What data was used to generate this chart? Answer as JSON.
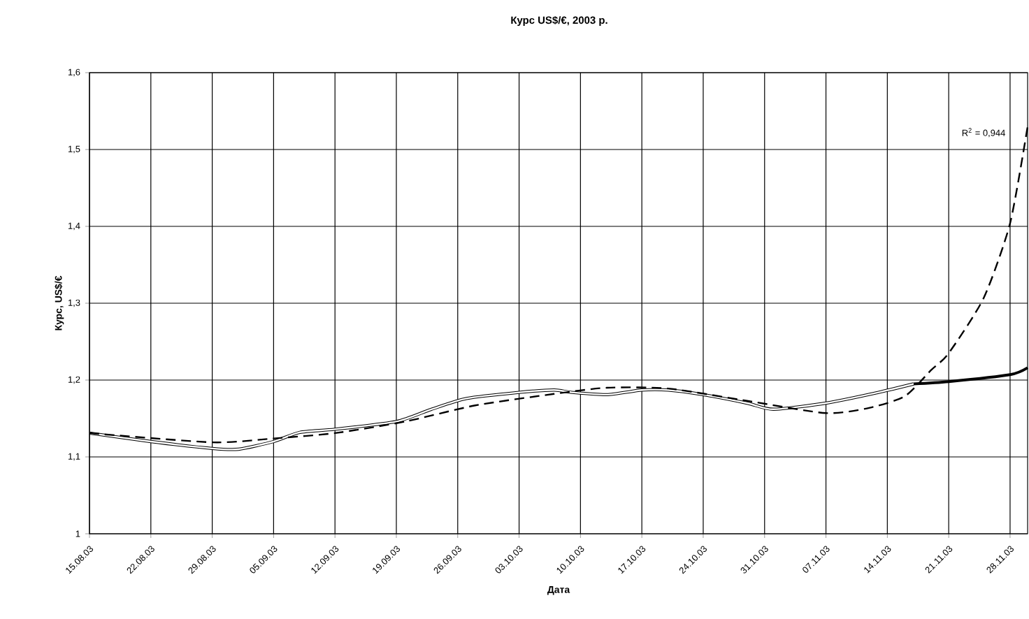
{
  "chart_data": {
    "type": "line",
    "title": "Курс US$/€, 2003 р.",
    "xlabel": "Дата",
    "ylabel": "Курс, US$/€",
    "annotations": [
      "R$^{2}$ = 0,944"
    ],
    "xlim": [
      "2003-08-15",
      "2003-11-30"
    ],
    "xticks": [
      {
        "value": "2003-08-15",
        "label": "15.08.03"
      },
      {
        "value": "2003-08-22",
        "label": "22.08.03"
      },
      {
        "value": "2003-08-29",
        "label": "29.08.03"
      },
      {
        "value": "2003-09-05",
        "label": "05.09.03"
      },
      {
        "value": "2003-09-12",
        "label": "12.09.03"
      },
      {
        "value": "2003-09-19",
        "label": "19.09.03"
      },
      {
        "value": "2003-09-26",
        "label": "26.09.03"
      },
      {
        "value": "2003-10-03",
        "label": "03.10.03"
      },
      {
        "value": "2003-10-10",
        "label": "10.10.03"
      },
      {
        "value": "2003-10-17",
        "label": "17.10.03"
      },
      {
        "value": "2003-10-24",
        "label": "24.10.03"
      },
      {
        "value": "2003-10-31",
        "label": "31.10.03"
      },
      {
        "value": "2003-11-07",
        "label": "07.11.03"
      },
      {
        "value": "2003-11-14",
        "label": "14.11.03"
      },
      {
        "value": "2003-11-21",
        "label": "21.11.03"
      },
      {
        "value": "2003-11-28",
        "label": "28.11.03"
      }
    ],
    "ylim": [
      1,
      1.6
    ],
    "yticks": [
      1,
      {
        "value": 1.1,
        "label": "1,1"
      },
      {
        "value": 1.2,
        "label": "1,2"
      },
      {
        "value": 1.3,
        "label": "1,3"
      },
      {
        "value": 1.4,
        "label": "1,4"
      },
      {
        "value": 1.5,
        "label": "1,5"
      },
      {
        "value": 1.6,
        "label": "1,6"
      }
    ],
    "grid": true,
    "marker": "none",
    "series": [
      {
        "color": "#000000",
        "line_style": "solid",
        "x": [
          "2003-08-15",
          "2003-08-22",
          "2003-08-29",
          "2003-09-01",
          "2003-09-05",
          "2003-09-08",
          "2003-09-12",
          "2003-09-19",
          "2003-09-23",
          "2003-09-27",
          "2003-10-03",
          "2003-10-07",
          "2003-10-09",
          "2003-10-13",
          "2003-10-17",
          "2003-10-20",
          "2003-10-24",
          "2003-10-29",
          "2003-11-01",
          "2003-11-07",
          "2003-11-13",
          "2003-11-17"
        ],
        "values": [
          1.131,
          1.12,
          1.111,
          1.11,
          1.12,
          1.132,
          1.136,
          1.146,
          1.162,
          1.176,
          1.184,
          1.187,
          1.184,
          1.181,
          1.187,
          1.187,
          1.181,
          1.17,
          1.162,
          1.17,
          1.184,
          1.195
        ]
      },
      {
        "color": "#000000",
        "line_style": "dashed",
        "x": [
          "2003-08-15",
          "2003-08-29",
          "2003-09-05",
          "2003-09-12",
          "2003-09-20",
          "2003-09-28",
          "2003-10-07",
          "2003-10-13",
          "2003-10-20",
          "2003-10-29",
          "2003-11-07",
          "2003-11-12",
          "2003-11-16",
          "2003-11-19",
          "2003-11-21",
          "2003-11-25",
          "2003-11-28",
          "2003-11-30"
        ],
        "values": [
          1.131,
          1.119,
          1.124,
          1.131,
          1.146,
          1.167,
          1.182,
          1.19,
          1.189,
          1.173,
          1.157,
          1.164,
          1.179,
          1.213,
          1.235,
          1.307,
          1.404,
          1.53
        ]
      },
      {
        "color": "#000000",
        "line_style": "solid",
        "x": [
          "2003-11-17",
          "2003-11-21",
          "2003-11-28",
          "2003-11-30"
        ],
        "values": [
          1.195,
          1.198,
          1.207,
          1.216
        ]
      }
    ]
  }
}
